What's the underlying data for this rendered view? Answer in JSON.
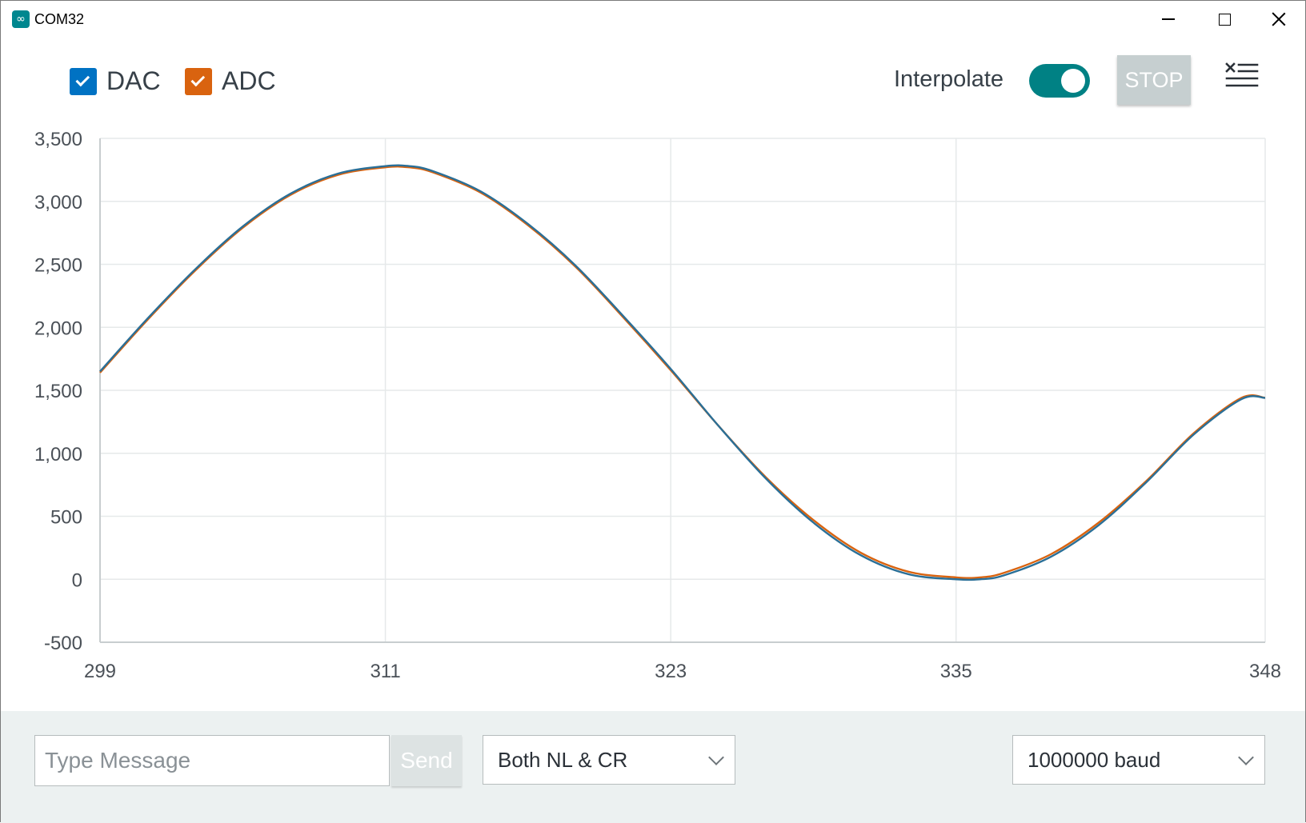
{
  "window": {
    "title": "COM32",
    "app_icon_glyph": "∞"
  },
  "toolbar": {
    "legend": [
      {
        "label": "DAC",
        "color": "#0072c3",
        "checked": true
      },
      {
        "label": "ADC",
        "color": "#d9630f",
        "checked": true
      }
    ],
    "interpolate_label": "Interpolate",
    "interpolate_on": true,
    "toggle_color": "#008184",
    "stop_label": "STOP",
    "clear_icon": "clear-list-icon"
  },
  "chart_data": {
    "type": "line",
    "x_ticks": [
      "299",
      "311",
      "323",
      "335",
      "348"
    ],
    "y_ticks": [
      "3,500",
      "3,000",
      "2,500",
      "2,000",
      "1,500",
      "1,000",
      "500",
      "0",
      "-500"
    ],
    "xlim": [
      299,
      348
    ],
    "ylim": [
      -500,
      3500
    ],
    "grid": true,
    "series": [
      {
        "name": "ADC",
        "color": "#d9630f",
        "x": [
          299,
          301,
          303,
          305,
          307,
          309,
          311,
          312,
          313,
          315,
          317,
          319,
          321,
          323,
          325,
          327,
          329,
          331,
          333,
          335,
          336,
          337,
          339,
          341,
          343,
          345,
          347,
          348
        ],
        "y": [
          1640,
          2060,
          2450,
          2790,
          3050,
          3210,
          3270,
          3270,
          3230,
          3070,
          2810,
          2480,
          2080,
          1660,
          1220,
          810,
          470,
          210,
          60,
          15,
          15,
          50,
          200,
          450,
          780,
          1160,
          1440,
          1440
        ]
      },
      {
        "name": "DAC",
        "color": "#2a6f97",
        "x": [
          299,
          301,
          303,
          305,
          307,
          309,
          311,
          312,
          313,
          315,
          317,
          319,
          321,
          323,
          325,
          327,
          329,
          331,
          333,
          335,
          336,
          337,
          339,
          341,
          343,
          345,
          347,
          348
        ],
        "y": [
          1650,
          2070,
          2460,
          2800,
          3060,
          3220,
          3280,
          3280,
          3240,
          3080,
          2820,
          2490,
          2090,
          1670,
          1220,
          800,
          450,
          190,
          40,
          0,
          0,
          30,
          180,
          430,
          770,
          1150,
          1430,
          1440
        ]
      }
    ]
  },
  "bottom": {
    "message_placeholder": "Type Message",
    "message_value": "",
    "send_label": "Send",
    "line_ending": "Both NL & CR",
    "baud": "1000000 baud"
  }
}
